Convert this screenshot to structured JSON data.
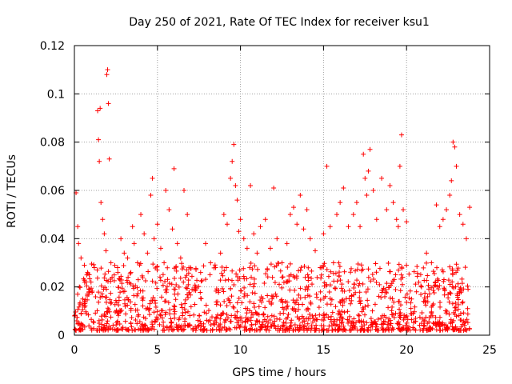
{
  "chart_data": {
    "type": "scatter",
    "title": "Day 250 of 2021, Rate Of TEC Index for receiver ksu1",
    "xlabel": "GPS time / hours",
    "ylabel": "ROTI / TECUs",
    "xlim": [
      0,
      25
    ],
    "ylim": [
      0,
      0.12
    ],
    "xticks": [
      0,
      5,
      10,
      15,
      20,
      25
    ],
    "xtick_labels": [
      "0",
      "5",
      "10",
      "15",
      "20",
      "25"
    ],
    "yticks": [
      0,
      0.02,
      0.04,
      0.06,
      0.08,
      0.1,
      0.12
    ],
    "ytick_labels": [
      "0",
      "0.02",
      "0.04",
      "0.06",
      "0.08",
      "0.1",
      "0.12"
    ],
    "grid": true,
    "marker": "+",
    "colors": {
      "series": "#ff0000",
      "grid": "#a0a0a0",
      "axis": "#000000"
    },
    "series": [
      {
        "name": "ROTI",
        "x": [
          0.1,
          0.2,
          0.25,
          0.3,
          0.4,
          0.5,
          0.6,
          0.75,
          0.9,
          1.0,
          1.2,
          1.4,
          1.45,
          1.5,
          1.55,
          1.6,
          1.7,
          1.8,
          1.9,
          1.95,
          2.0,
          2.05,
          2.1,
          2.2,
          2.4,
          2.6,
          2.8,
          3.0,
          3.2,
          3.4,
          3.5,
          3.6,
          3.8,
          4.0,
          4.2,
          4.4,
          4.6,
          4.7,
          4.8,
          5.0,
          5.2,
          5.4,
          5.5,
          5.7,
          5.9,
          6.0,
          6.2,
          6.4,
          6.6,
          6.8,
          7.0,
          7.3,
          7.6,
          7.9,
          8.2,
          8.5,
          8.8,
          9.0,
          9.2,
          9.4,
          9.5,
          9.6,
          9.7,
          9.8,
          9.9,
          10.0,
          10.2,
          10.4,
          10.6,
          10.8,
          11.0,
          11.2,
          11.5,
          11.8,
          12.0,
          12.2,
          12.5,
          12.8,
          13.0,
          13.2,
          13.4,
          13.6,
          13.8,
          14.0,
          14.2,
          14.5,
          14.8,
          15.0,
          15.2,
          15.4,
          15.6,
          15.8,
          16.0,
          16.2,
          16.5,
          16.8,
          17.0,
          17.2,
          17.4,
          17.5,
          17.6,
          17.7,
          17.8,
          18.0,
          18.2,
          18.5,
          18.8,
          19.0,
          19.2,
          19.4,
          19.5,
          19.6,
          19.7,
          19.8,
          20.0,
          20.3,
          20.6,
          20.9,
          21.2,
          21.5,
          21.8,
          22.0,
          22.2,
          22.4,
          22.6,
          22.7,
          22.8,
          22.9,
          23.0,
          23.2,
          23.4,
          23.6,
          23.8
        ],
        "y": [
          0.059,
          0.045,
          0.038,
          0.02,
          0.032,
          0.015,
          0.029,
          0.025,
          0.018,
          0.022,
          0.028,
          0.093,
          0.081,
          0.072,
          0.094,
          0.055,
          0.048,
          0.042,
          0.035,
          0.108,
          0.11,
          0.096,
          0.073,
          0.03,
          0.025,
          0.028,
          0.04,
          0.034,
          0.032,
          0.026,
          0.045,
          0.038,
          0.03,
          0.05,
          0.042,
          0.034,
          0.058,
          0.065,
          0.04,
          0.046,
          0.036,
          0.03,
          0.06,
          0.052,
          0.044,
          0.069,
          0.038,
          0.032,
          0.06,
          0.05,
          0.028,
          0.02,
          0.026,
          0.038,
          0.03,
          0.028,
          0.034,
          0.05,
          0.046,
          0.065,
          0.072,
          0.079,
          0.062,
          0.056,
          0.043,
          0.048,
          0.04,
          0.036,
          0.062,
          0.042,
          0.034,
          0.045,
          0.048,
          0.036,
          0.061,
          0.04,
          0.03,
          0.038,
          0.05,
          0.053,
          0.046,
          0.058,
          0.044,
          0.052,
          0.04,
          0.035,
          0.028,
          0.042,
          0.07,
          0.045,
          0.03,
          0.05,
          0.055,
          0.061,
          0.045,
          0.05,
          0.055,
          0.045,
          0.075,
          0.065,
          0.058,
          0.068,
          0.077,
          0.06,
          0.048,
          0.065,
          0.052,
          0.062,
          0.055,
          0.048,
          0.045,
          0.07,
          0.083,
          0.052,
          0.047,
          0.015,
          0.018,
          0.02,
          0.034,
          0.03,
          0.054,
          0.045,
          0.048,
          0.052,
          0.058,
          0.064,
          0.08,
          0.078,
          0.07,
          0.05,
          0.046,
          0.04,
          0.053
        ]
      }
    ],
    "dense_band": {
      "x_range": [
        0,
        23.8
      ],
      "y_range": [
        0.002,
        0.03
      ],
      "description": "dense cloud of points"
    }
  }
}
